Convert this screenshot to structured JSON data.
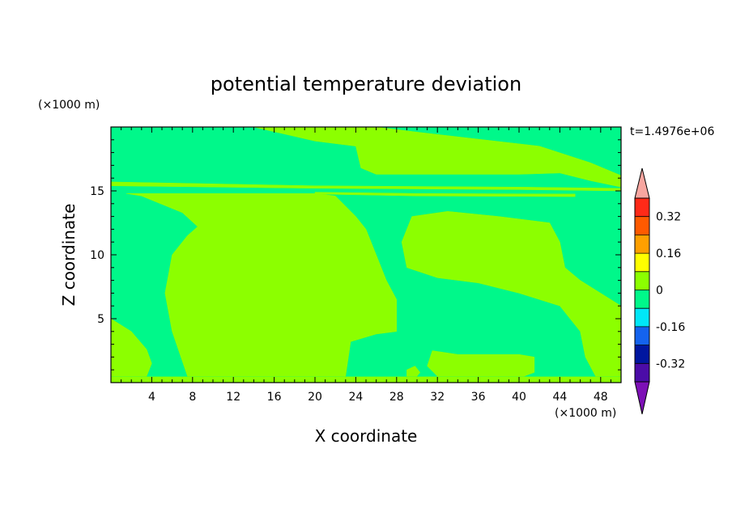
{
  "chart_data": {
    "type": "heatmap",
    "title": "potential temperature deviation",
    "xlabel": "X coordinate",
    "ylabel": "Z coordinate",
    "x_unit": "(×1000 m)",
    "y_unit": "(×1000 m)",
    "time_label": "t=1.4976e+06",
    "xlim": [
      0,
      50
    ],
    "ylim": [
      0,
      20
    ],
    "x_ticks": [
      4,
      8,
      12,
      16,
      20,
      24,
      28,
      32,
      36,
      40,
      44,
      48
    ],
    "y_ticks": [
      5,
      10,
      15
    ],
    "colorbar": {
      "levels": [
        -0.4,
        -0.32,
        -0.24,
        -0.16,
        -0.08,
        0,
        0.08,
        0.16,
        0.24,
        0.32,
        0.4
      ],
      "colors": [
        "#4b0ca8",
        "#0016a0",
        "#1463ee",
        "#00e7f8",
        "#00f88a",
        "#8cff00",
        "#ffff00",
        "#ffa000",
        "#ff5a00",
        "#ff2a18"
      ],
      "under_color": "#7d10b6",
      "over_color": "#f7a6a0",
      "tick_labels": [
        "0.32",
        "0.16",
        "0",
        "-0.16",
        "-0.32"
      ],
      "tick_values": [
        0.32,
        0.16,
        0,
        -0.16,
        -0.32
      ]
    },
    "field": {
      "background_color": "#00f88a",
      "positive_color": "#8cff00",
      "regions": [
        {
          "name": "upper-left-band",
          "polygon": [
            [
              4.5,
              20
            ],
            [
              14,
              20
            ],
            [
              20,
              18.9
            ],
            [
              24,
              18.5
            ],
            [
              24.5,
              16.8
            ],
            [
              26,
              16.3
            ],
            [
              40,
              16.3
            ],
            [
              44,
              16.4
            ],
            [
              47,
              15.8
            ],
            [
              50,
              15.3
            ],
            [
              50,
              16.2
            ],
            [
              47,
              17.2
            ],
            [
              42,
              18.5
            ],
            [
              30,
              19.6
            ],
            [
              26,
              20
            ]
          ]
        },
        {
          "name": "thin-band-15",
          "polygon": [
            [
              0,
              15.4
            ],
            [
              20,
              15.2
            ],
            [
              40,
              15.1
            ],
            [
              50,
              15.0
            ],
            [
              50,
              15.2
            ],
            [
              40,
              15.3
            ],
            [
              20,
              15.4
            ],
            [
              0,
              15.7
            ]
          ]
        },
        {
          "name": "thin-band-14-8",
          "polygon": [
            [
              20,
              14.9
            ],
            [
              30,
              14.8
            ],
            [
              45.5,
              14.75
            ],
            [
              45.5,
              14.55
            ],
            [
              30,
              14.6
            ],
            [
              20,
              14.75
            ]
          ]
        },
        {
          "name": "central-mass",
          "polygon": [
            [
              1.5,
              14.8
            ],
            [
              20,
              14.8
            ],
            [
              22,
              14.6
            ],
            [
              24,
              13
            ],
            [
              25,
              12
            ],
            [
              26,
              10
            ],
            [
              27,
              8
            ],
            [
              28,
              6.5
            ],
            [
              28,
              4
            ],
            [
              26,
              3.8
            ],
            [
              23.5,
              3.2
            ],
            [
              23,
              0.5
            ],
            [
              7.5,
              0.5
            ],
            [
              6,
              4
            ],
            [
              5.3,
              7
            ],
            [
              6,
              10
            ],
            [
              7.5,
              11.5
            ],
            [
              8.5,
              12.2
            ],
            [
              7,
              13.3
            ],
            [
              3,
              14.6
            ]
          ]
        },
        {
          "name": "right-upper-mass",
          "polygon": [
            [
              29.5,
              13
            ],
            [
              33,
              13.4
            ],
            [
              38,
              13
            ],
            [
              43,
              12.5
            ],
            [
              44,
              11
            ],
            [
              44.5,
              9
            ],
            [
              46,
              8
            ],
            [
              50,
              6
            ],
            [
              50,
              0.5
            ],
            [
              47.5,
              0.5
            ],
            [
              46.5,
              2
            ],
            [
              46,
              4
            ],
            [
              44,
              6
            ],
            [
              40,
              7
            ],
            [
              36,
              7.8
            ],
            [
              32,
              8.2
            ],
            [
              29,
              9
            ],
            [
              28.5,
              11
            ]
          ]
        },
        {
          "name": "left-lower-blob",
          "polygon": [
            [
              0,
              5
            ],
            [
              2,
              4
            ],
            [
              3.5,
              2.6
            ],
            [
              4,
              1.5
            ],
            [
              3.5,
              0.5
            ],
            [
              0,
              0.5
            ]
          ]
        },
        {
          "name": "right-lower-blob",
          "polygon": [
            [
              31.5,
              2.5
            ],
            [
              34,
              2.2
            ],
            [
              40,
              2.2
            ],
            [
              41.5,
              2
            ],
            [
              41.5,
              0.8
            ],
            [
              40.5,
              0.5
            ],
            [
              32,
              0.5
            ],
            [
              31,
              1.3
            ]
          ]
        },
        {
          "name": "small-blob-29",
          "polygon": [
            [
              29,
              1
            ],
            [
              29.8,
              1.3
            ],
            [
              30.3,
              0.8
            ],
            [
              30,
              0.5
            ],
            [
              29,
              0.5
            ]
          ]
        },
        {
          "name": "bottom-edge-strip",
          "polygon": [
            [
              0,
              0
            ],
            [
              50,
              0
            ],
            [
              50,
              0.45
            ],
            [
              0,
              0.45
            ]
          ]
        }
      ]
    }
  }
}
